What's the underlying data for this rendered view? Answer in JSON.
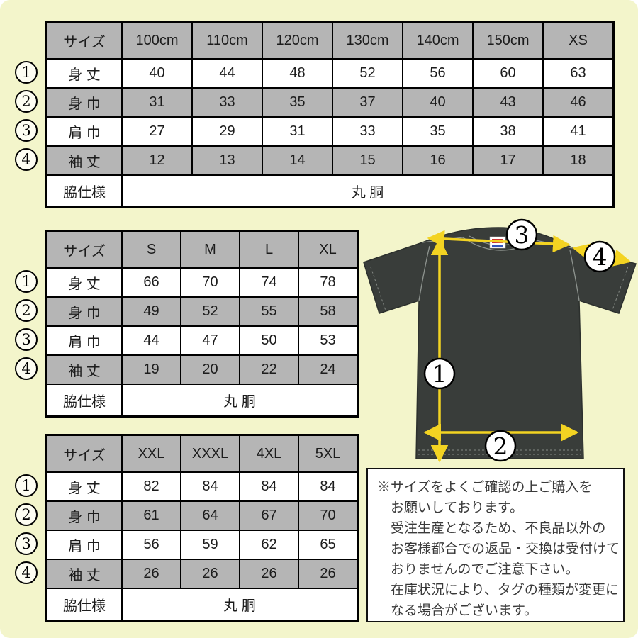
{
  "colors": {
    "background": "#f3f5cb",
    "table_header_gray": "#b5b5b5",
    "arrow_yellow": "#f3d322",
    "shirt_charcoal": "#393d3a"
  },
  "tables": [
    {
      "name": "kids-sizes",
      "columns": [
        "サイズ",
        "100cm",
        "110cm",
        "120cm",
        "130cm",
        "140cm",
        "150cm",
        "XS"
      ],
      "rows": [
        {
          "num": "1",
          "label": "身 丈",
          "values": [
            "40",
            "44",
            "48",
            "52",
            "56",
            "60",
            "63"
          ]
        },
        {
          "num": "2",
          "label": "身 巾",
          "values": [
            "31",
            "33",
            "35",
            "37",
            "40",
            "43",
            "46"
          ]
        },
        {
          "num": "3",
          "label": "肩 巾",
          "values": [
            "27",
            "29",
            "31",
            "33",
            "35",
            "38",
            "41"
          ]
        },
        {
          "num": "4",
          "label": "袖 丈",
          "values": [
            "12",
            "13",
            "14",
            "15",
            "16",
            "17",
            "18"
          ]
        }
      ],
      "footer": {
        "label": "脇仕様",
        "value": "丸 胴"
      }
    },
    {
      "name": "adult-sizes",
      "columns": [
        "サイズ",
        "S",
        "M",
        "L",
        "XL"
      ],
      "rows": [
        {
          "num": "1",
          "label": "身 丈",
          "values": [
            "66",
            "70",
            "74",
            "78"
          ]
        },
        {
          "num": "2",
          "label": "身 巾",
          "values": [
            "49",
            "52",
            "55",
            "58"
          ]
        },
        {
          "num": "3",
          "label": "肩 巾",
          "values": [
            "44",
            "47",
            "50",
            "53"
          ]
        },
        {
          "num": "4",
          "label": "袖 丈",
          "values": [
            "19",
            "20",
            "22",
            "24"
          ]
        }
      ],
      "footer": {
        "label": "脇仕様",
        "value": "丸 胴"
      }
    },
    {
      "name": "big-sizes",
      "columns": [
        "サイズ",
        "XXL",
        "XXXL",
        "4XL",
        "5XL"
      ],
      "rows": [
        {
          "num": "1",
          "label": "身 丈",
          "values": [
            "82",
            "84",
            "84",
            "84"
          ]
        },
        {
          "num": "2",
          "label": "身 巾",
          "values": [
            "61",
            "64",
            "67",
            "70"
          ]
        },
        {
          "num": "3",
          "label": "肩 巾",
          "values": [
            "56",
            "59",
            "62",
            "65"
          ]
        },
        {
          "num": "4",
          "label": "袖 丈",
          "values": [
            "26",
            "26",
            "26",
            "26"
          ]
        }
      ],
      "footer": {
        "label": "脇仕様",
        "value": "丸 胴"
      }
    }
  ],
  "diagram": {
    "markers": [
      "1",
      "2",
      "3",
      "4"
    ]
  },
  "note": {
    "lines": [
      "※サイズをよくご確認の上ご購入を",
      "お願いしております。",
      "受注生産となるため、不良品以外の",
      "お客様都合での返品・交換は受付けて",
      "おりませんのでご注意下さい。",
      "在庫状況により、タグの種類が変更に",
      "なる場合がございます。"
    ]
  }
}
